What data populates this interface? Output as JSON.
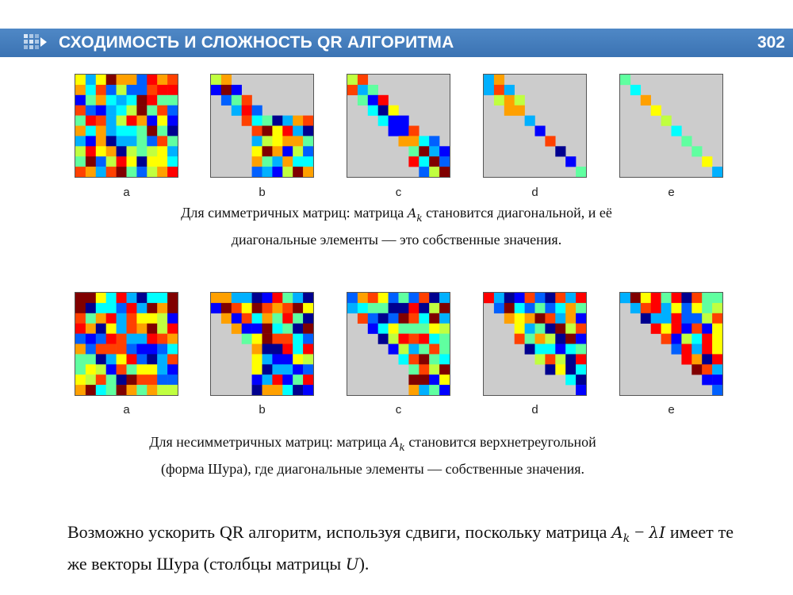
{
  "header": {
    "title": "СХОДИМОСТЬ И СЛОЖНОСТЬ QR АЛГОРИТМА",
    "page_number": "302"
  },
  "colormap": [
    "#00008f",
    "#0000ff",
    "#0060ff",
    "#00b0ff",
    "#00ffff",
    "#60ffa0",
    "#c0ff40",
    "#ffff00",
    "#ffa000",
    "#ff4000",
    "#ff0000",
    "#800000"
  ],
  "background_color": "#cccccc",
  "symmetric": {
    "labels": [
      "a",
      "b",
      "c",
      "d",
      "e"
    ],
    "caption": {
      "before": "Для симметричных матриц: матрица ",
      "var": "A",
      "sub": "k",
      "after": " становится диагональной, и её",
      "line2": "диагональные элементы — это собственные значения."
    }
  },
  "nonsymmetric": {
    "labels": [
      "a",
      "b",
      "c",
      "d",
      "e"
    ],
    "caption": {
      "before": "Для несимметричных матриц: матрица ",
      "var": "A",
      "sub": "k",
      "after": " становится верхнетреугольной",
      "line2": "(форма Шура), где диагональные элементы — собственные значения."
    }
  },
  "paragraph": {
    "text1": "Возможно ускорить QR алгоритм, используя сдвиги, поскольку матрица",
    "A": "A",
    "k": "k",
    "minus": " − ",
    "lambdaI": "λI",
    "text2": " имеет те же векторы Шура (столбцы матрицы ",
    "U": "U",
    "text3": ")."
  }
}
